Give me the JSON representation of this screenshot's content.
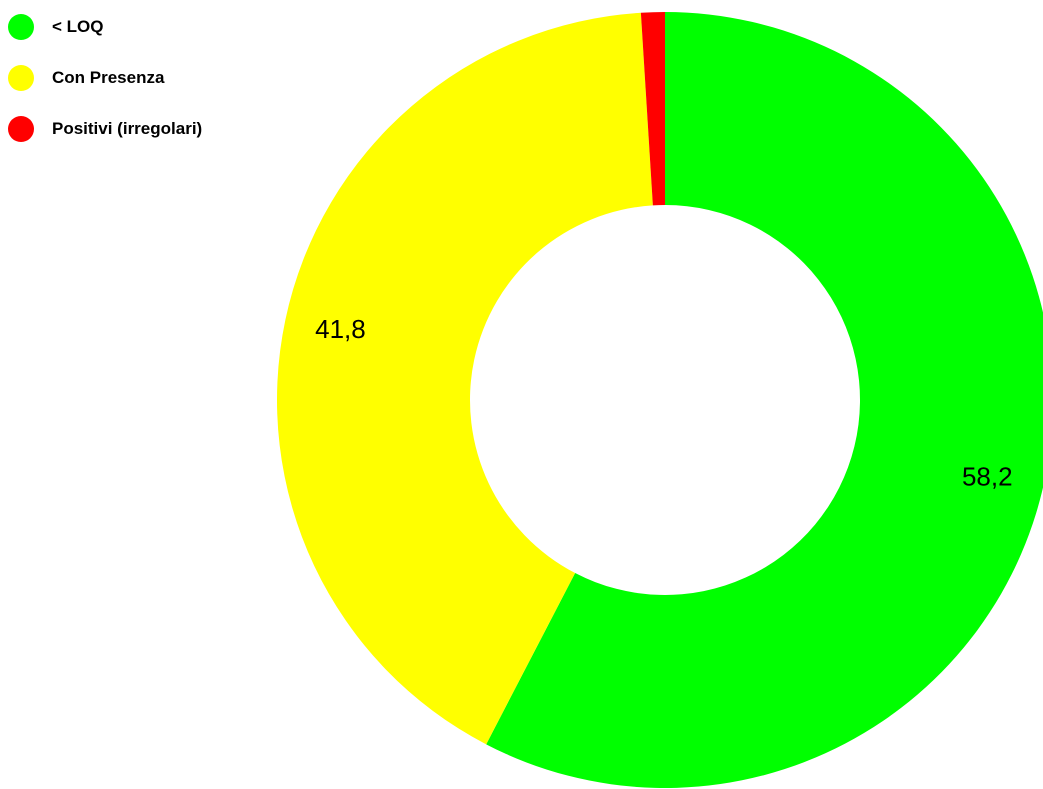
{
  "chart_data": {
    "type": "pie",
    "variant": "donut",
    "title": "",
    "legend_position": "top-left",
    "slices": [
      {
        "name": "< LOQ",
        "value": 58.2,
        "label": "58,2",
        "color": "#00ff00"
      },
      {
        "name": "Con Presenza",
        "value": 41.8,
        "label": "41,8",
        "color": "#ffff00"
      },
      {
        "name": "Positivi (irregolari)",
        "value": 1.0,
        "label": "",
        "color": "#ff0000"
      }
    ]
  }
}
